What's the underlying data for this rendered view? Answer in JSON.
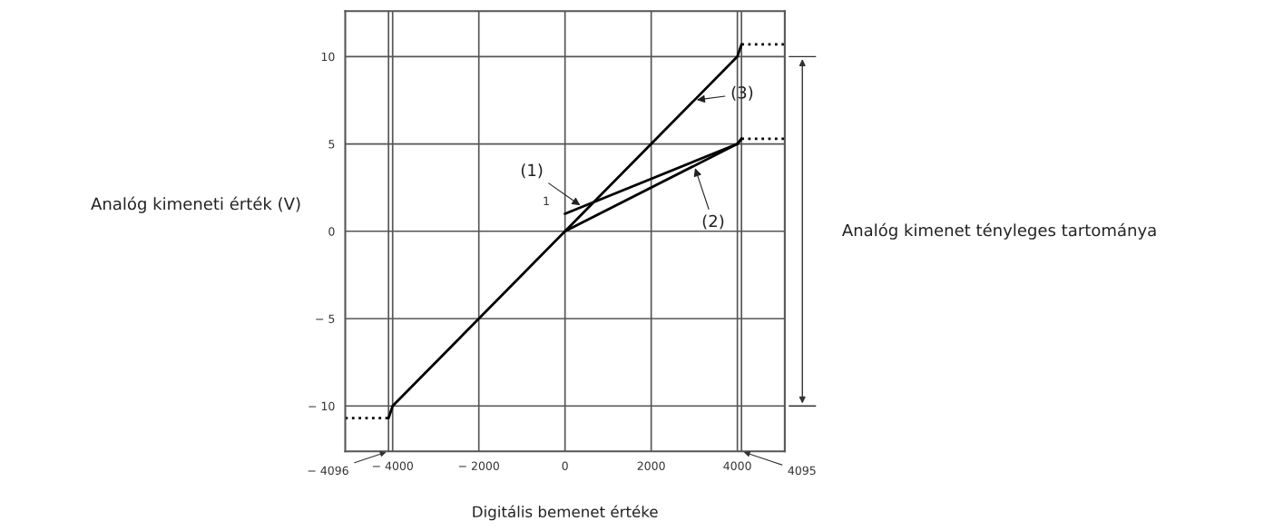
{
  "chart_data": {
    "type": "line",
    "xlabel": "Digitális bemenet értéke",
    "ylabel": "Analóg kimeneti érték (V)",
    "xlim": [
      -5100,
      5100
    ],
    "ylim": [
      -12.6,
      12.6
    ],
    "xticks": [
      {
        "value": -4000,
        "label": "− 4000"
      },
      {
        "value": -2000,
        "label": "− 2000"
      },
      0,
      2000,
      4000
    ],
    "yticks": [
      {
        "value": -10,
        "label": "− 10"
      },
      {
        "value": -5,
        "label": "− 5"
      },
      0,
      5,
      10
    ],
    "grid": true,
    "series": [
      {
        "color": "#000000",
        "x": [
          -4096,
          -4000,
          4000,
          4095
        ],
        "values": [
          -10.7,
          -10,
          10,
          10.7
        ]
      },
      {
        "color": "#000000",
        "x": [
          0,
          4000,
          4095
        ],
        "values": [
          1,
          5,
          5.3
        ]
      },
      {
        "color": "#000000",
        "x": [
          0,
          4000,
          4095
        ],
        "values": [
          0,
          5,
          5.3
        ]
      },
      {
        "color": "#000000",
        "x": [
          -5100,
          -4096
        ],
        "values": [
          -10.7,
          -10.7
        ],
        "line_style": "dotted"
      },
      {
        "color": "#000000",
        "x": [
          4095,
          5100
        ],
        "values": [
          10.7,
          10.7
        ],
        "line_style": "dotted"
      },
      {
        "color": "#000000",
        "x": [
          4095,
          5100
        ],
        "values": [
          5.3,
          5.3
        ],
        "line_style": "dotted"
      }
    ],
    "ref_lines": [
      {
        "axis": "x",
        "value": -4096,
        "label": "− 4096"
      },
      {
        "axis": "x",
        "value": 4095,
        "label": "4095"
      }
    ],
    "annotations": [
      "Analóg kimenet tényleges tartománya",
      {
        "text": "(1)",
        "x": 400,
        "y": 1.4
      },
      {
        "text": "(2)",
        "x": 3000,
        "y": 3.75
      },
      {
        "text": "(3)",
        "x": 3000,
        "y": 7.5
      },
      {
        "text": "1",
        "x": 0,
        "y": 1
      }
    ]
  }
}
